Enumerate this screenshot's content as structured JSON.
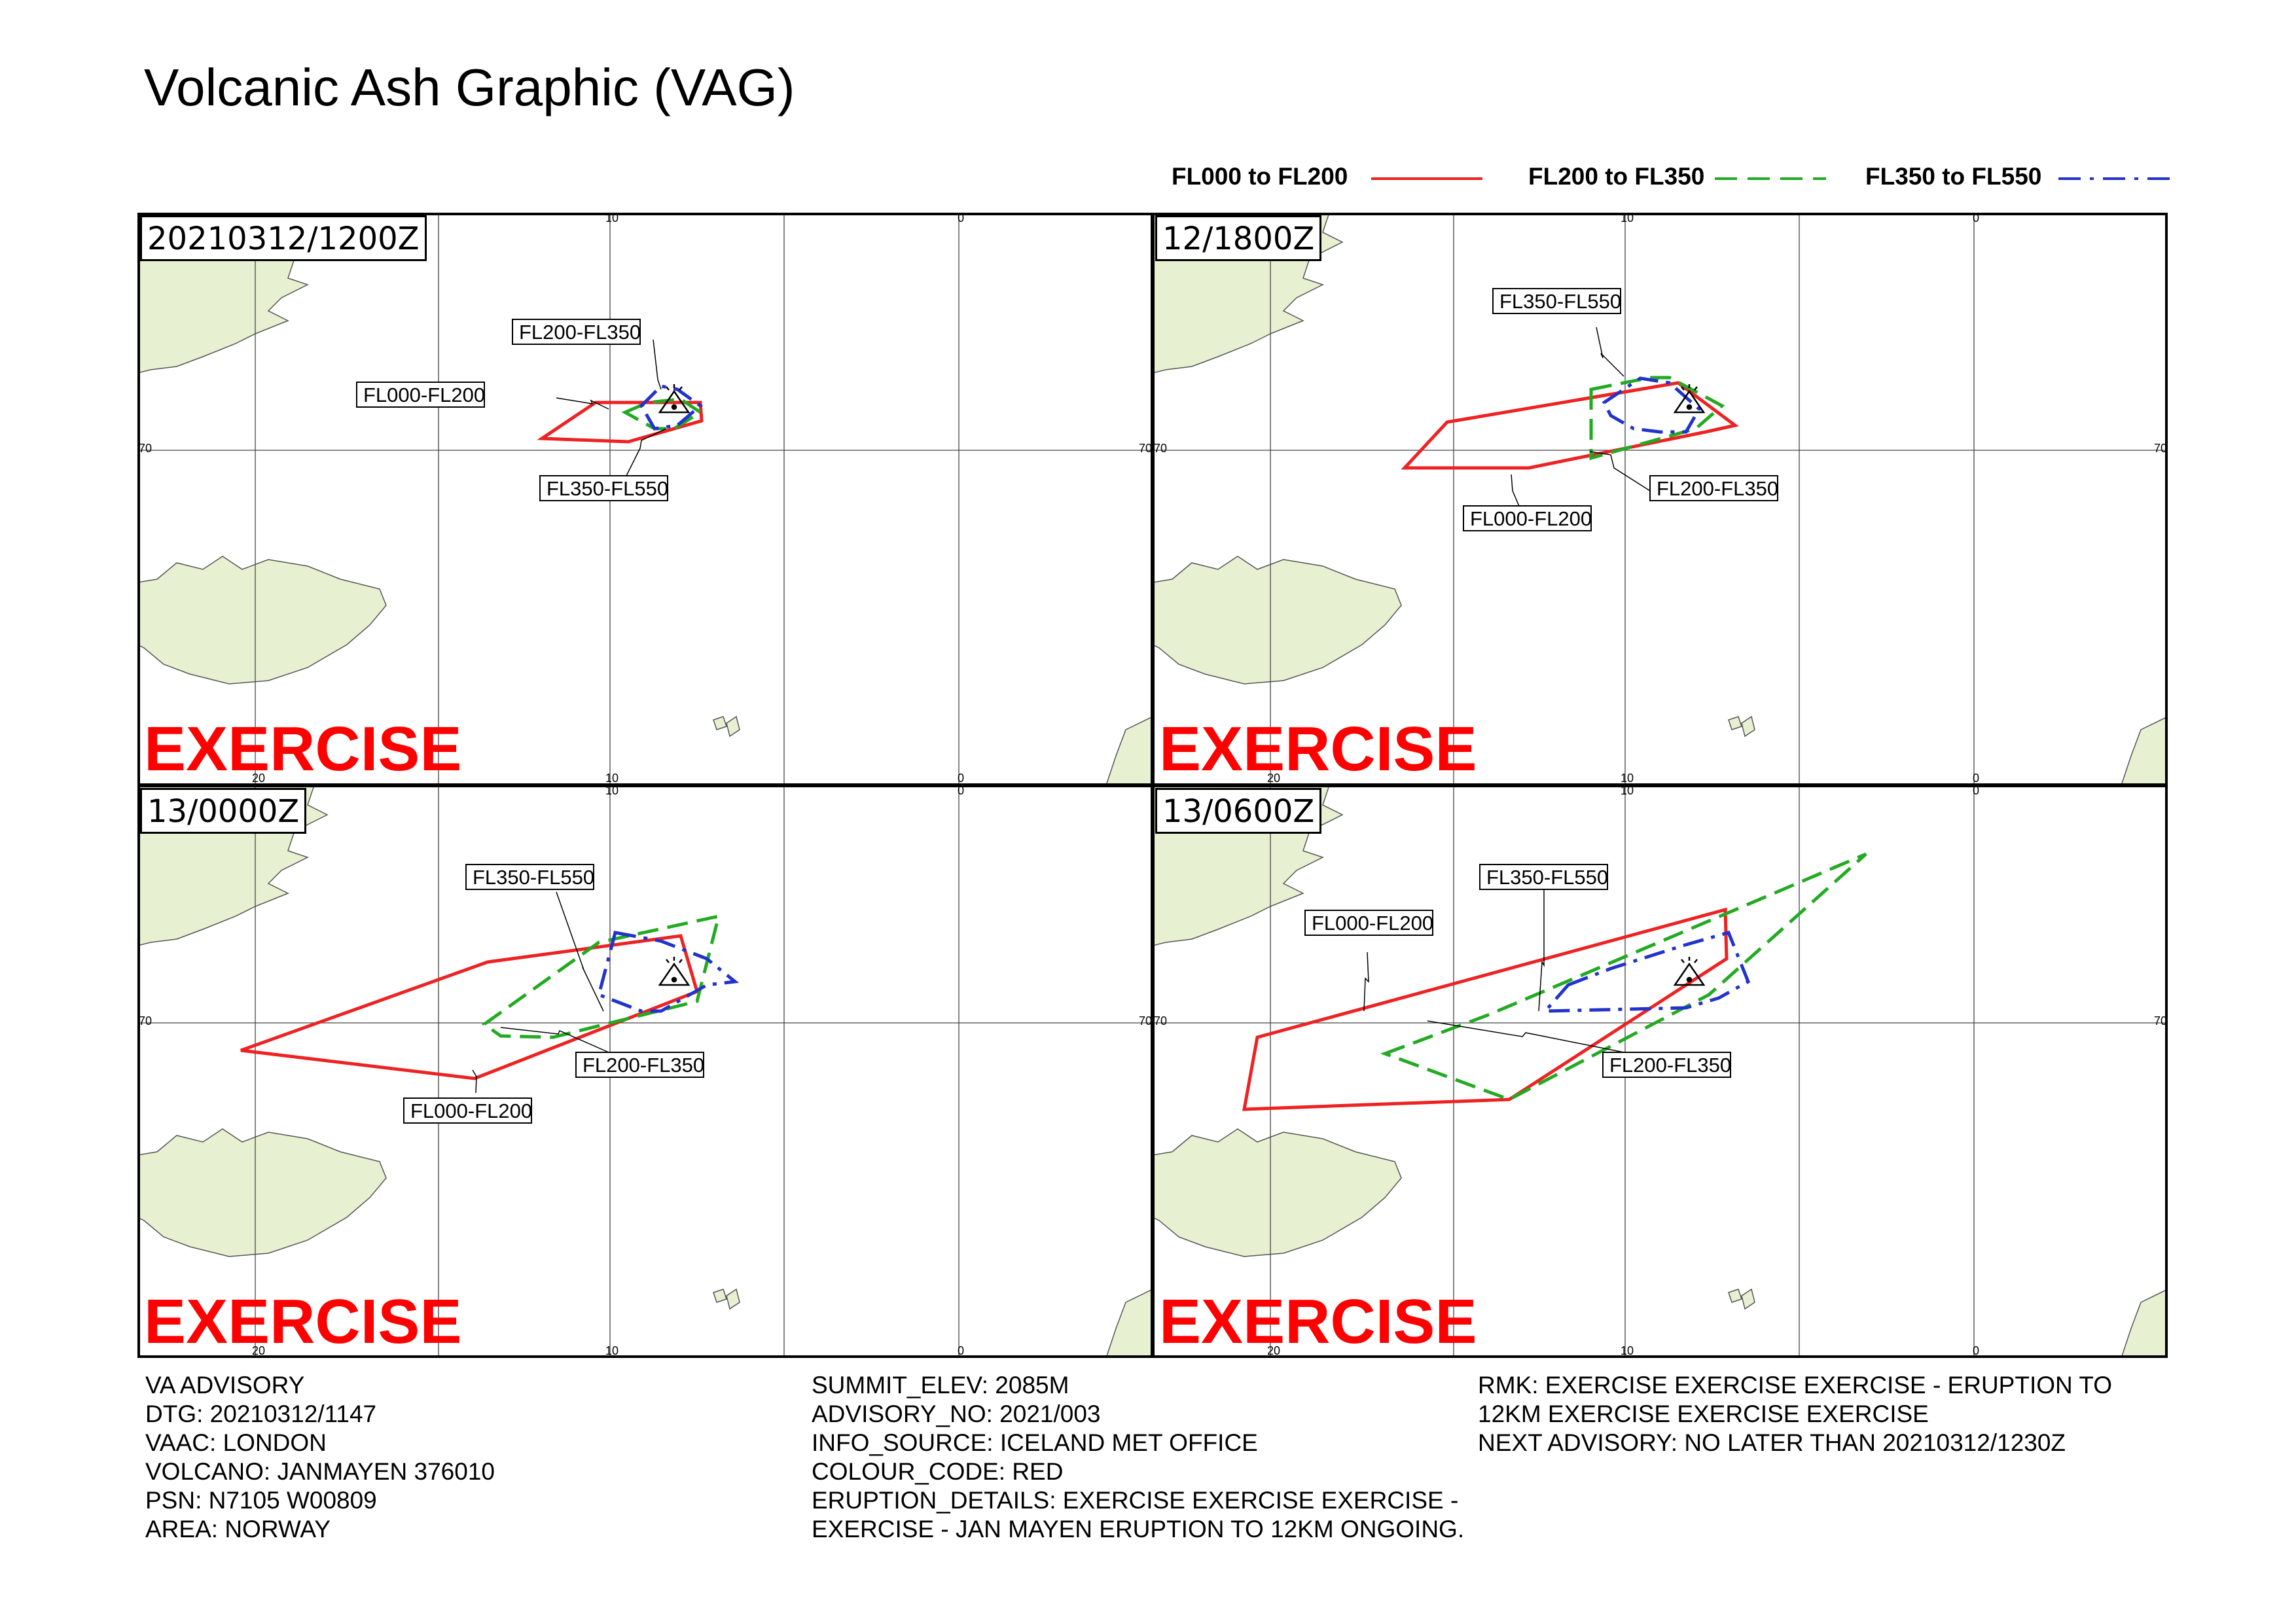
{
  "title": "Volcanic Ash Graphic (VAG)",
  "legend": [
    {
      "label": "FL000 to FL200",
      "color": "#ee2222",
      "style": "solid"
    },
    {
      "label": "FL200 to FL350",
      "color": "#22aa22",
      "style": "dashed"
    },
    {
      "label": "FL350 to FL550",
      "color": "#2233cc",
      "style": "dash-dot"
    }
  ],
  "map": {
    "land_color": "#e8f0d2",
    "grid_labels": {
      "lon_top": [
        "10",
        "0"
      ],
      "lon_bottom": [
        "20",
        "10",
        "0"
      ],
      "lat": [
        "70"
      ]
    }
  },
  "panels": [
    {
      "time": "20210312/1200Z",
      "exercise": "EXERCISE",
      "callouts": [
        "FL200-FL350",
        "FL000-FL200",
        "FL350-FL550"
      ]
    },
    {
      "time": "12/1800Z",
      "exercise": "EXERCISE",
      "callouts": [
        "FL350-FL550",
        "FL200-FL350",
        "FL000-FL200"
      ]
    },
    {
      "time": "13/0000Z",
      "exercise": "EXERCISE",
      "callouts": [
        "FL350-FL550",
        "FL200-FL350",
        "FL000-FL200"
      ]
    },
    {
      "time": "13/0600Z",
      "exercise": "EXERCISE",
      "callouts": [
        "FL000-FL200",
        "FL350-FL550",
        "FL200-FL350"
      ]
    }
  ],
  "advisory": {
    "col1": [
      "VA ADVISORY",
      "DTG: 20210312/1147",
      "VAAC: LONDON",
      "VOLCANO: JANMAYEN 376010",
      "PSN: N7105 W00809",
      "AREA: NORWAY"
    ],
    "col2": [
      "SUMMIT_ELEV: 2085M",
      "ADVISORY_NO: 2021/003",
      "INFO_SOURCE: ICELAND MET OFFICE",
      "COLOUR_CODE: RED",
      "ERUPTION_DETAILS: EXERCISE EXERCISE EXERCISE -",
      "EXERCISE - JAN MAYEN ERUPTION TO 12KM ONGOING."
    ],
    "col3": [
      "RMK: EXERCISE EXERCISE EXERCISE - ERUPTION TO",
      "12KM EXERCISE EXERCISE EXERCISE",
      "NEXT ADVISORY: NO LATER THAN 20210312/1230Z"
    ]
  }
}
